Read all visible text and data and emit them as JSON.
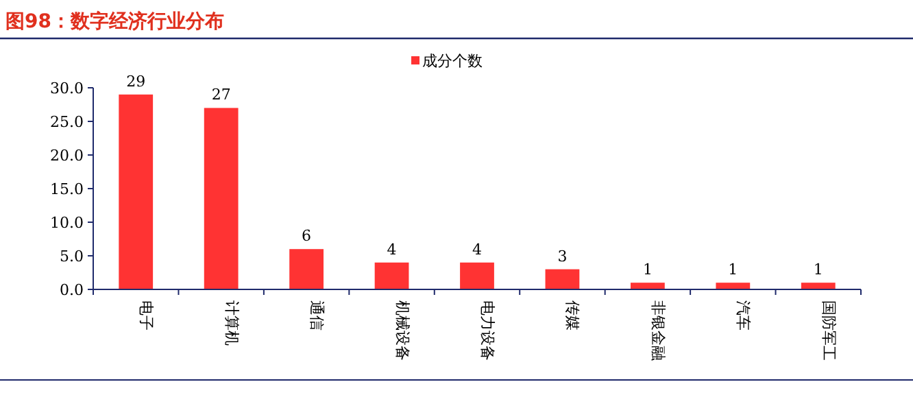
{
  "chart_data": {
    "type": "bar",
    "title": "图98：数字经济行业分布",
    "categories": [
      "电子",
      "计算机",
      "通信",
      "机械设备",
      "电力设备",
      "传媒",
      "非银金融",
      "汽车",
      "国防军工"
    ],
    "series": [
      {
        "name": "成分个数",
        "color": "#ff3333",
        "values": [
          29,
          27,
          6,
          4,
          4,
          3,
          1,
          1,
          1
        ]
      }
    ],
    "ylim": [
      0,
      30
    ],
    "yticks": [
      {
        "value": 0,
        "label": "0.0"
      },
      {
        "value": 5,
        "label": "5.0"
      },
      {
        "value": 10,
        "label": "10.0"
      },
      {
        "value": 15,
        "label": "15.0"
      },
      {
        "value": 20,
        "label": "20.0"
      },
      {
        "value": 25,
        "label": "25.0"
      },
      {
        "value": 30,
        "label": "30.0"
      }
    ],
    "data_labels": true,
    "legend": "top"
  }
}
